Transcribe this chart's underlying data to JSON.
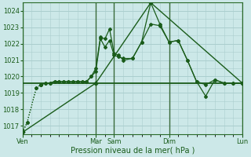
{
  "background_color": "#cce8e8",
  "grid_color": "#aacece",
  "line_color": "#1a5c1a",
  "xlabel": "Pression niveau de la mer( hPa )",
  "ylim": [
    1016.5,
    1024.5
  ],
  "yticks": [
    1017,
    1018,
    1019,
    1020,
    1021,
    1022,
    1023,
    1024
  ],
  "day_labels": [
    "Ven",
    "Mar",
    "Sam",
    "Dim",
    "Lun"
  ],
  "day_positions": [
    0,
    8,
    10,
    16,
    24
  ],
  "xlim": [
    0,
    24
  ],
  "series1_x": [
    0,
    0.5,
    1.5,
    2,
    2.5,
    3,
    3.5,
    4,
    4.5,
    5,
    5.5,
    6,
    6.5,
    7,
    7.5,
    8,
    8.5,
    9,
    9.5,
    10,
    10.5,
    11,
    12,
    13,
    14,
    15,
    16,
    17,
    18,
    19,
    20,
    21,
    22,
    23,
    24
  ],
  "series1_y": [
    1016.6,
    1017.2,
    1019.3,
    1019.5,
    1019.6,
    1019.6,
    1019.7,
    1019.7,
    1019.7,
    1019.7,
    1019.7,
    1019.7,
    1019.7,
    1019.7,
    1020.0,
    1020.5,
    1022.4,
    1022.3,
    1022.9,
    1021.4,
    1021.3,
    1021.0,
    1021.1,
    1022.1,
    1024.5,
    1023.2,
    1022.1,
    1022.2,
    1021.0,
    1019.7,
    1018.8,
    1019.8,
    1019.6,
    1019.6,
    1019.6
  ],
  "series2_x": [
    0,
    0.5,
    1.5,
    2,
    2.5,
    3,
    3.5,
    4,
    4.5,
    5,
    5.5,
    6,
    6.5,
    7,
    7.5,
    8,
    8.5,
    9,
    9.5,
    10,
    10.5,
    11,
    12,
    13,
    14,
    15,
    16,
    17,
    18,
    19,
    20,
    21,
    22,
    23,
    24
  ],
  "series2_y": [
    1016.6,
    1017.2,
    1019.3,
    1019.5,
    1019.6,
    1019.6,
    1019.7,
    1019.7,
    1019.7,
    1019.7,
    1019.7,
    1019.7,
    1019.7,
    1019.7,
    1020.0,
    1020.3,
    1022.3,
    1021.8,
    1022.2,
    1021.3,
    1021.2,
    1021.1,
    1021.1,
    1022.1,
    1023.2,
    1023.1,
    1022.1,
    1022.2,
    1021.0,
    1019.7,
    1019.5,
    1019.8,
    1019.6,
    1019.6,
    1019.6
  ],
  "series3_x": [
    0,
    8,
    14,
    24
  ],
  "series3_y": [
    1016.6,
    1019.6,
    1024.5,
    1019.6
  ],
  "series4_x": [
    0,
    24
  ],
  "series4_y": [
    1019.6,
    1019.6
  ],
  "dotted_end_x": 2
}
